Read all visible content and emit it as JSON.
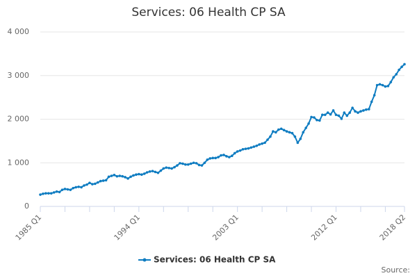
{
  "chart_data": {
    "type": "line",
    "title": "Services: 06 Health CP SA",
    "categories": [
      "1985 Q1",
      null,
      null,
      null,
      null,
      null,
      null,
      null,
      null,
      null,
      null,
      null,
      null,
      null,
      null,
      null,
      null,
      null,
      null,
      null,
      null,
      null,
      null,
      null,
      null,
      null,
      null,
      null,
      null,
      null,
      null,
      null,
      null,
      null,
      null,
      null,
      "1994 Q1",
      null,
      null,
      null,
      null,
      null,
      null,
      null,
      null,
      null,
      null,
      null,
      null,
      null,
      null,
      null,
      null,
      null,
      null,
      null,
      null,
      null,
      null,
      null,
      null,
      null,
      null,
      null,
      null,
      null,
      null,
      null,
      null,
      null,
      null,
      null,
      "2003 Q1",
      null,
      null,
      null,
      null,
      null,
      null,
      null,
      null,
      null,
      null,
      null,
      null,
      null,
      null,
      null,
      null,
      null,
      null,
      null,
      null,
      null,
      null,
      null,
      null,
      null,
      null,
      null,
      null,
      null,
      null,
      null,
      null,
      null,
      null,
      null,
      "2012 Q1",
      null,
      null,
      null,
      null,
      null,
      null,
      null,
      null,
      null,
      null,
      null,
      null,
      null,
      null,
      null,
      null,
      null,
      null,
      null,
      null,
      null,
      null,
      null,
      null,
      "2018 Q2"
    ],
    "series": [
      {
        "name": "Services: 06 Health CP SA",
        "color": "#0e7cc1",
        "values": [
          270,
          290,
          300,
          300,
          300,
          320,
          340,
          330,
          380,
          400,
          390,
          380,
          420,
          440,
          450,
          440,
          480,
          500,
          540,
          510,
          520,
          550,
          580,
          590,
          600,
          680,
          700,
          720,
          690,
          700,
          690,
          670,
          640,
          680,
          710,
          730,
          740,
          730,
          750,
          780,
          800,
          810,
          790,
          770,
          820,
          870,
          890,
          880,
          870,
          900,
          940,
          990,
          980,
          960,
          960,
          980,
          1000,
          990,
          950,
          940,
          1000,
          1070,
          1100,
          1110,
          1110,
          1130,
          1170,
          1180,
          1150,
          1130,
          1160,
          1220,
          1260,
          1280,
          1310,
          1320,
          1330,
          1350,
          1370,
          1390,
          1420,
          1440,
          1460,
          1530,
          1600,
          1720,
          1700,
          1760,
          1780,
          1750,
          1720,
          1700,
          1680,
          1600,
          1460,
          1550,
          1700,
          1800,
          1900,
          2050,
          2040,
          1980,
          1970,
          2100,
          2100,
          2150,
          2110,
          2200,
          2100,
          2080,
          2010,
          2150,
          2080,
          2150,
          2260,
          2180,
          2150,
          2180,
          2200,
          2220,
          2230,
          2400,
          2550,
          2780,
          2800,
          2780,
          2750,
          2760,
          2850,
          2960,
          3030,
          3130,
          3200,
          3260
        ]
      }
    ],
    "ylim": [
      0,
      4000
    ],
    "yticks": [
      0,
      {
        "value": 1000,
        "label": "1 000"
      },
      {
        "value": 2000,
        "label": "2 000"
      },
      {
        "value": 3000,
        "label": "3 000"
      },
      {
        "value": 4000,
        "label": "4 000"
      }
    ],
    "grid": true,
    "source": "Source:"
  }
}
